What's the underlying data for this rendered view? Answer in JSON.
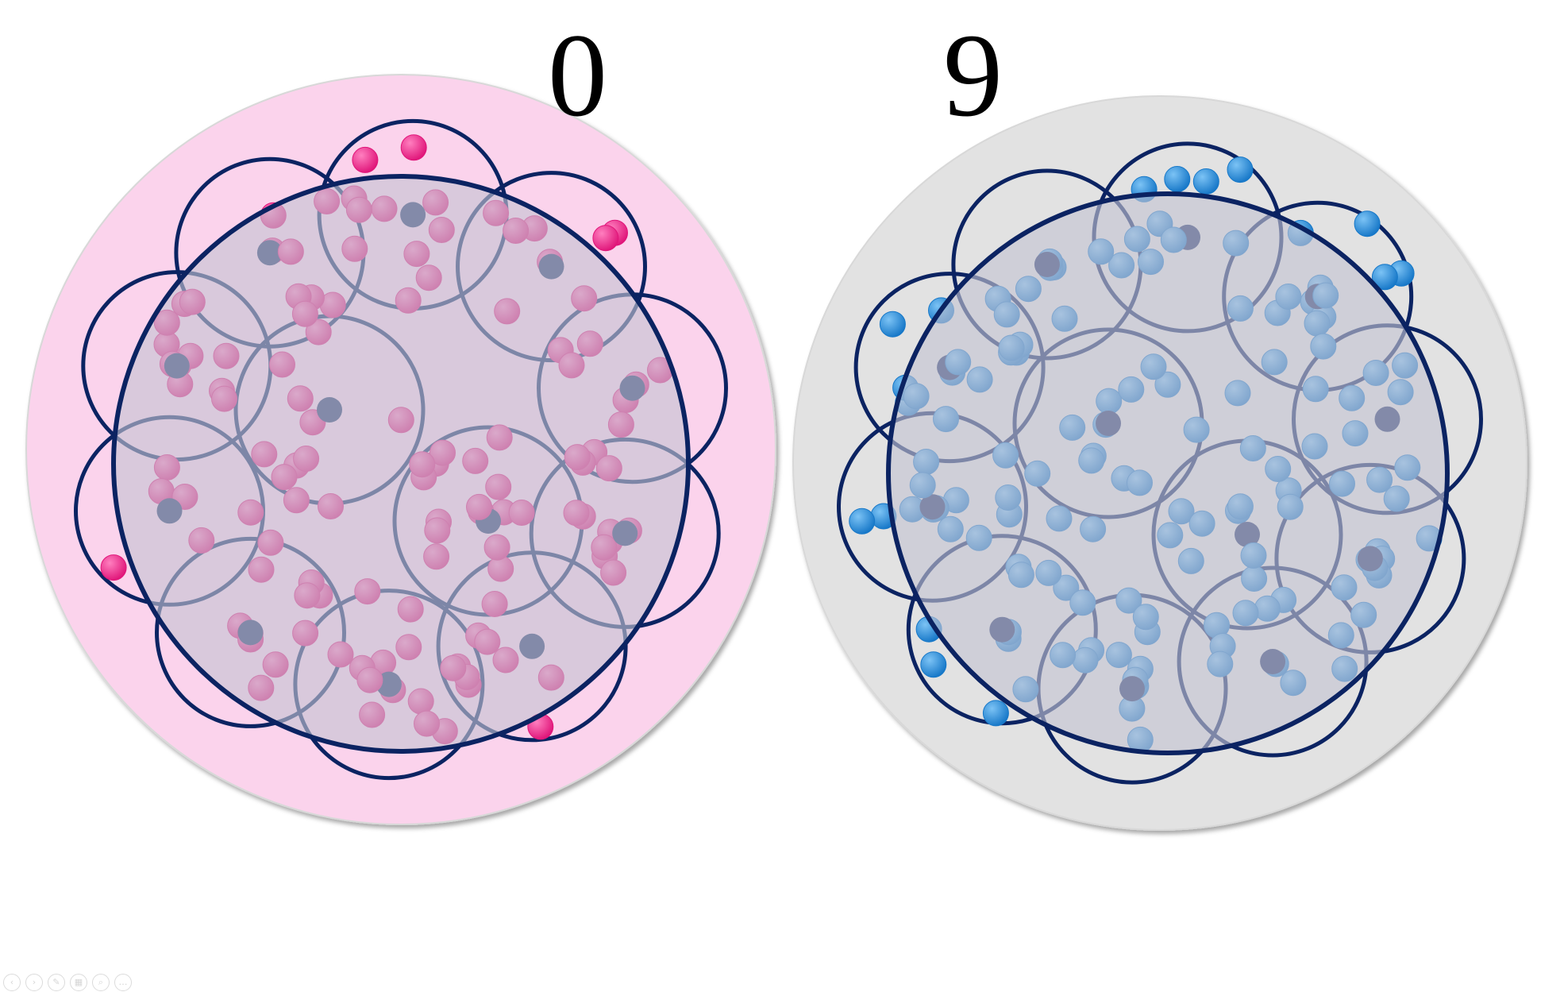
{
  "panels": [
    {
      "label": "0",
      "name": "panel-left",
      "colors": {
        "disc": "#fbd3ec",
        "dot": "#e0167a",
        "dot_highlight": "#ff7fbf",
        "ring": "#0b2362",
        "overlay": "#c4c4d2",
        "center_dot": "#1b2f66"
      }
    },
    {
      "label": "9",
      "name": "panel-right",
      "colors": {
        "disc": "#e2e2e2",
        "dot": "#1778c8",
        "dot_highlight": "#7cc3f5",
        "ring": "#0b2362",
        "overlay": "#c4c4d2",
        "center_dot": "#1b2f66"
      }
    }
  ],
  "toolbar": {
    "icons": [
      "previous-icon",
      "next-icon",
      "pen-icon",
      "slides-icon",
      "zoom-icon",
      "more-icon"
    ]
  }
}
